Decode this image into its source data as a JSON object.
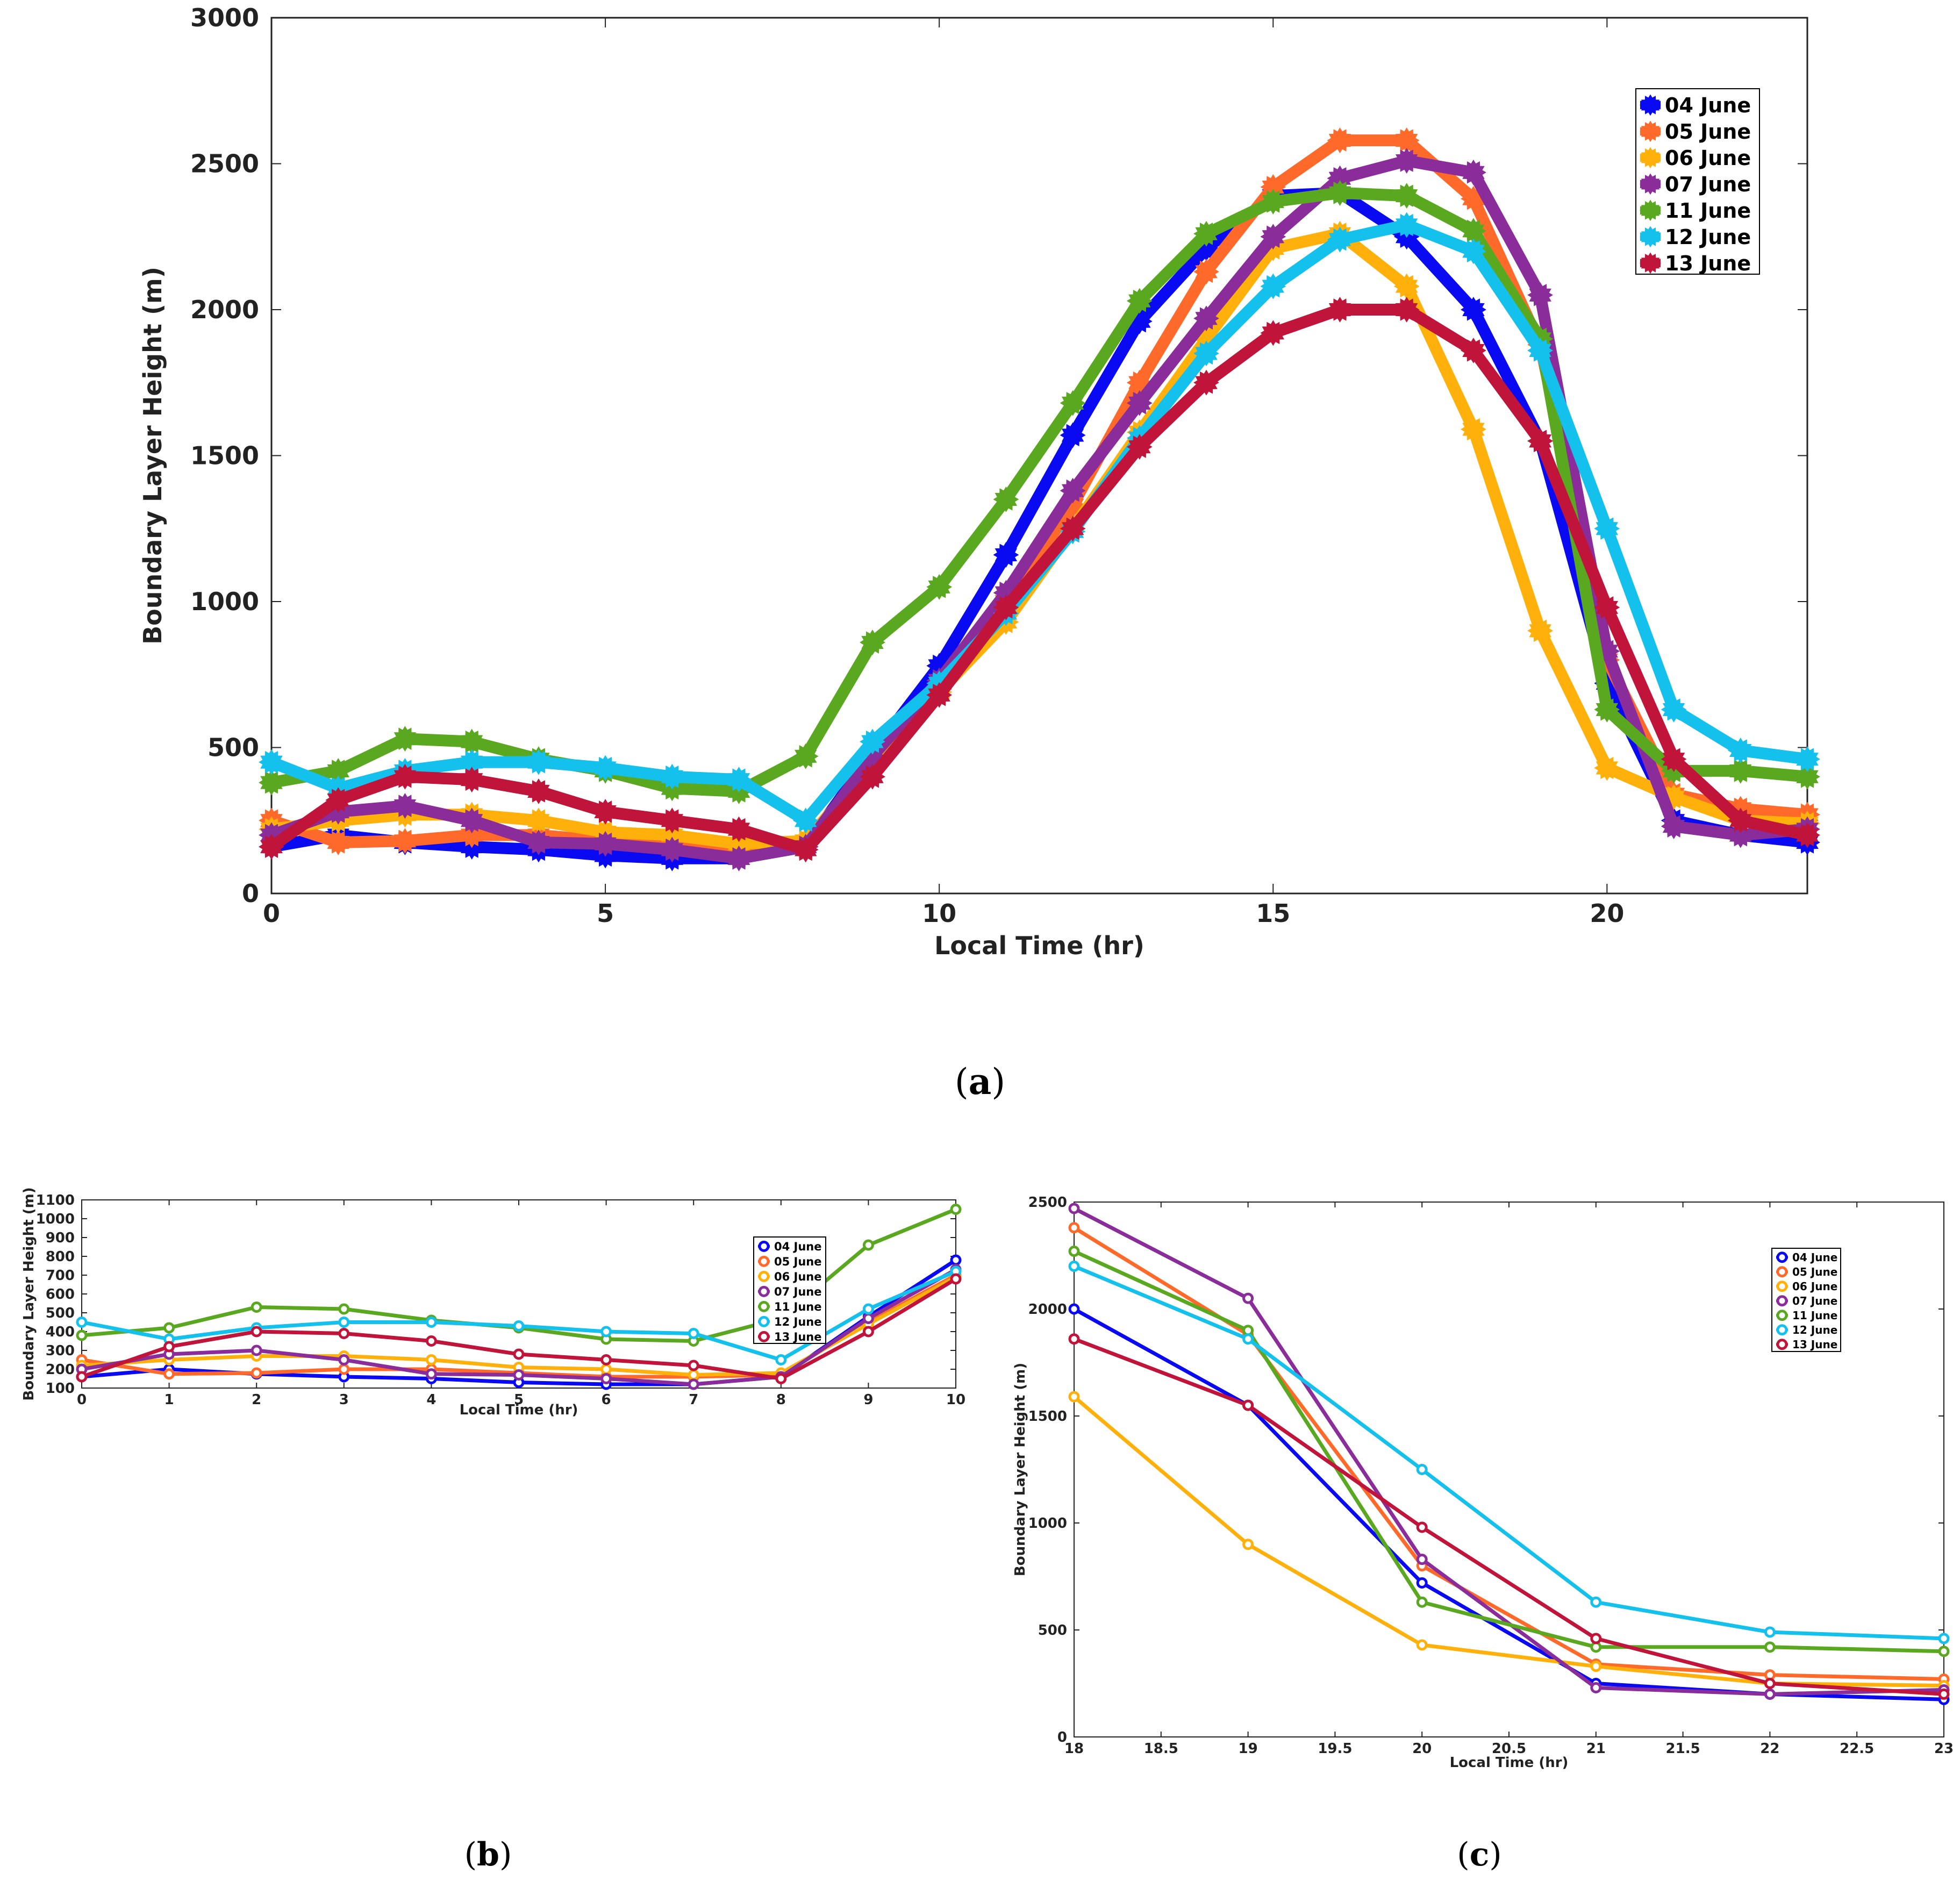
{
  "series_meta": [
    {
      "name": "04 June",
      "color": "#0a0af2"
    },
    {
      "name": "05 June",
      "color": "#ff6a2a"
    },
    {
      "name": "06 June",
      "color": "#ffb00a"
    },
    {
      "name": "07 June",
      "color": "#8a2c9a"
    },
    {
      "name": "11 June",
      "color": "#5aa820"
    },
    {
      "name": "12 June",
      "color": "#14c0ec"
    },
    {
      "name": "13 June",
      "color": "#c0143a"
    }
  ],
  "chart_data": [
    {
      "id": "a",
      "type": "line",
      "caption": "a",
      "xlabel": "Local Time (hr)",
      "ylabel": "Boundary Layer Height (m)",
      "xlim": [
        0,
        23
      ],
      "ylim": [
        0,
        3000
      ],
      "xticks": [
        0,
        5,
        10,
        15,
        20
      ],
      "yticks": [
        0,
        500,
        1000,
        1500,
        2000,
        2500,
        3000
      ],
      "legend_position": "top-right",
      "x": [
        0,
        1,
        2,
        3,
        4,
        5,
        6,
        7,
        8,
        9,
        10,
        11,
        12,
        13,
        14,
        15,
        16,
        17,
        18,
        19,
        20,
        21,
        22,
        23
      ],
      "series": [
        {
          "name": "04 June",
          "values": [
            160,
            200,
            175,
            160,
            150,
            130,
            120,
            120,
            160,
            480,
            780,
            1160,
            1570,
            1960,
            2210,
            2390,
            2400,
            2250,
            2000,
            1550,
            720,
            250,
            200,
            175
          ]
        },
        {
          "name": "05 June",
          "values": [
            250,
            175,
            180,
            200,
            200,
            180,
            160,
            160,
            170,
            450,
            700,
            1000,
            1330,
            1750,
            2130,
            2420,
            2580,
            2580,
            2380,
            1880,
            800,
            340,
            290,
            270
          ]
        },
        {
          "name": "06 June",
          "values": [
            220,
            250,
            270,
            270,
            250,
            210,
            200,
            170,
            180,
            440,
            690,
            930,
            1250,
            1580,
            1900,
            2210,
            2260,
            2080,
            1590,
            900,
            430,
            330,
            250,
            240
          ]
        },
        {
          "name": "07 June",
          "values": [
            200,
            280,
            300,
            250,
            175,
            170,
            150,
            120,
            160,
            470,
            730,
            1030,
            1380,
            1680,
            1970,
            2250,
            2450,
            2510,
            2470,
            2050,
            830,
            230,
            200,
            220
          ]
        },
        {
          "name": "11 June",
          "values": [
            380,
            420,
            530,
            520,
            460,
            420,
            360,
            350,
            470,
            860,
            1050,
            1350,
            1680,
            2030,
            2260,
            2370,
            2400,
            2390,
            2270,
            1900,
            630,
            420,
            420,
            400
          ]
        },
        {
          "name": "12 June",
          "values": [
            450,
            360,
            420,
            450,
            450,
            430,
            400,
            390,
            250,
            520,
            720,
            960,
            1240,
            1560,
            1850,
            2080,
            2240,
            2290,
            2200,
            1860,
            1250,
            630,
            490,
            460
          ]
        },
        {
          "name": "13 June",
          "values": [
            160,
            320,
            400,
            390,
            350,
            280,
            250,
            220,
            150,
            400,
            680,
            980,
            1250,
            1530,
            1750,
            1920,
            2000,
            2000,
            1860,
            1550,
            980,
            460,
            250,
            200
          ]
        }
      ]
    },
    {
      "id": "b",
      "type": "line",
      "caption": "b",
      "xlabel": "Local Time (hr)",
      "ylabel": "Boundary Layer Height (m)",
      "xlim": [
        0,
        10
      ],
      "ylim": [
        100,
        1100
      ],
      "xticks": [
        0,
        1,
        2,
        3,
        4,
        5,
        6,
        7,
        8,
        9,
        10
      ],
      "yticks": [
        100,
        200,
        300,
        400,
        500,
        600,
        700,
        800,
        900,
        1000,
        1100
      ],
      "legend_position": "top-right",
      "x": [
        0,
        1,
        2,
        3,
        4,
        5,
        6,
        7,
        8,
        9,
        10
      ],
      "series": [
        {
          "name": "04 June",
          "values": [
            160,
            200,
            175,
            160,
            150,
            130,
            120,
            120,
            160,
            480,
            780
          ]
        },
        {
          "name": "05 June",
          "values": [
            250,
            175,
            180,
            200,
            200,
            180,
            160,
            160,
            170,
            450,
            700
          ]
        },
        {
          "name": "06 June",
          "values": [
            220,
            250,
            270,
            270,
            250,
            210,
            200,
            170,
            180,
            440,
            690
          ]
        },
        {
          "name": "07 June",
          "values": [
            200,
            280,
            300,
            250,
            175,
            170,
            150,
            120,
            160,
            470,
            730
          ]
        },
        {
          "name": "11 June",
          "values": [
            380,
            420,
            530,
            520,
            460,
            420,
            360,
            350,
            470,
            860,
            1050
          ]
        },
        {
          "name": "12 June",
          "values": [
            450,
            360,
            420,
            450,
            450,
            430,
            400,
            390,
            250,
            520,
            720
          ]
        },
        {
          "name": "13 June",
          "values": [
            160,
            320,
            400,
            390,
            350,
            280,
            250,
            220,
            150,
            400,
            680
          ]
        }
      ]
    },
    {
      "id": "c",
      "type": "line",
      "caption": "c",
      "xlabel": "Local Time (hr)",
      "ylabel": "Boundary Layer Height (m)",
      "xlim": [
        18,
        23
      ],
      "ylim": [
        0,
        2500
      ],
      "xticks": [
        18,
        18.5,
        19,
        19.5,
        20,
        20.5,
        21,
        21.5,
        22,
        22.5,
        23
      ],
      "yticks": [
        0,
        500,
        1000,
        1500,
        2000,
        2500
      ],
      "legend_position": "top-right",
      "x": [
        18,
        19,
        20,
        21,
        22,
        23
      ],
      "series": [
        {
          "name": "04 June",
          "values": [
            2000,
            1550,
            720,
            250,
            200,
            175
          ]
        },
        {
          "name": "05 June",
          "values": [
            2380,
            1880,
            800,
            340,
            290,
            270
          ]
        },
        {
          "name": "06 June",
          "values": [
            1590,
            900,
            430,
            330,
            250,
            240
          ]
        },
        {
          "name": "07 June",
          "values": [
            2470,
            2050,
            830,
            230,
            200,
            220
          ]
        },
        {
          "name": "11 June",
          "values": [
            2270,
            1900,
            630,
            420,
            420,
            400
          ]
        },
        {
          "name": "12 June",
          "values": [
            2200,
            1860,
            1250,
            630,
            490,
            460
          ]
        },
        {
          "name": "13 June",
          "values": [
            1860,
            1550,
            980,
            460,
            250,
            200
          ]
        }
      ]
    }
  ]
}
